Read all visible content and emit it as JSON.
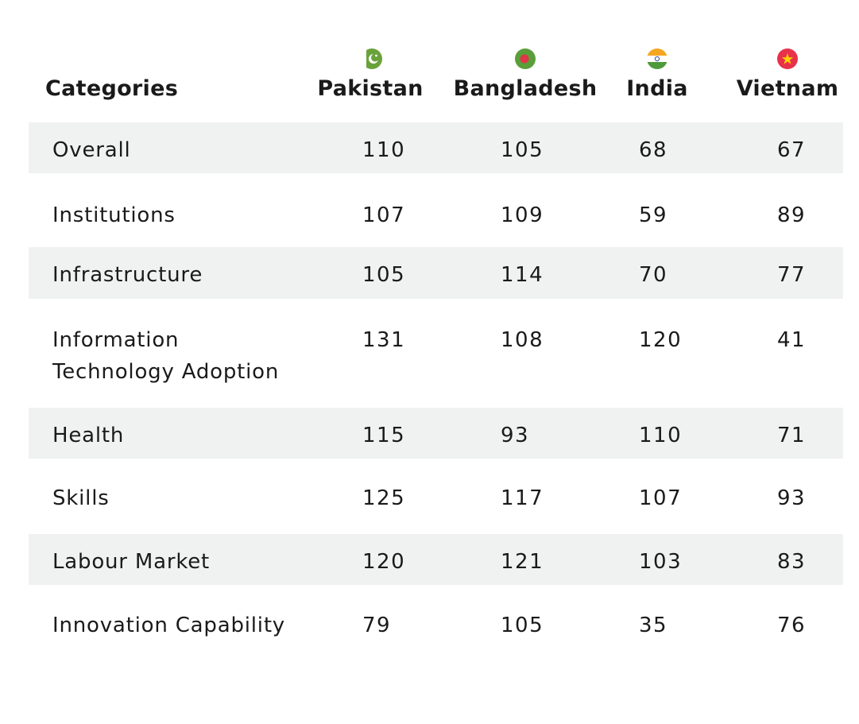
{
  "table": {
    "header_label": "Categories",
    "columns": [
      {
        "name": "Pakistan",
        "flag_icon": "pakistan-flag-icon"
      },
      {
        "name": "Bangladesh",
        "flag_icon": "bangladesh-flag-icon"
      },
      {
        "name": "India",
        "flag_icon": "india-flag-icon"
      },
      {
        "name": "Vietnam",
        "flag_icon": "vietnam-flag-icon"
      }
    ],
    "rows": [
      {
        "category": "Overall",
        "values": [
          "110",
          "105",
          "68",
          "67"
        ]
      },
      {
        "category": "Institutions",
        "values": [
          "107",
          "109",
          "59",
          "89"
        ]
      },
      {
        "category": "Infrastructure",
        "values": [
          "105",
          "114",
          "70",
          "77"
        ]
      },
      {
        "category": "Information Technology Adoption",
        "values": [
          "131",
          "108",
          "120",
          "41"
        ]
      },
      {
        "category": "Health",
        "values": [
          "115",
          "93",
          "110",
          "71"
        ]
      },
      {
        "category": "Skills",
        "values": [
          "125",
          "117",
          "107",
          "93"
        ]
      },
      {
        "category": "Labour Market",
        "values": [
          "120",
          "121",
          "103",
          "83"
        ]
      },
      {
        "category": "Innovation Capability",
        "values": [
          "79",
          "105",
          "35",
          "76"
        ]
      }
    ],
    "colors": {
      "row_shade": "#f0f1f1",
      "text": "#1a1a1a"
    }
  },
  "chart_data": {
    "type": "table",
    "columns": [
      "Categories",
      "Pakistan",
      "Bangladesh",
      "India",
      "Vietnam"
    ],
    "categories": [
      "Overall",
      "Institutions",
      "Infrastructure",
      "Information Technology Adoption",
      "Health",
      "Skills",
      "Labour Market",
      "Innovation Capability"
    ],
    "series": [
      {
        "name": "Pakistan",
        "values": [
          110,
          107,
          105,
          131,
          115,
          125,
          120,
          79
        ]
      },
      {
        "name": "Bangladesh",
        "values": [
          105,
          109,
          114,
          108,
          93,
          117,
          121,
          105
        ]
      },
      {
        "name": "India",
        "values": [
          68,
          59,
          70,
          120,
          110,
          107,
          103,
          35
        ]
      },
      {
        "name": "Vietnam",
        "values": [
          67,
          89,
          77,
          41,
          71,
          93,
          83,
          76
        ]
      }
    ]
  }
}
